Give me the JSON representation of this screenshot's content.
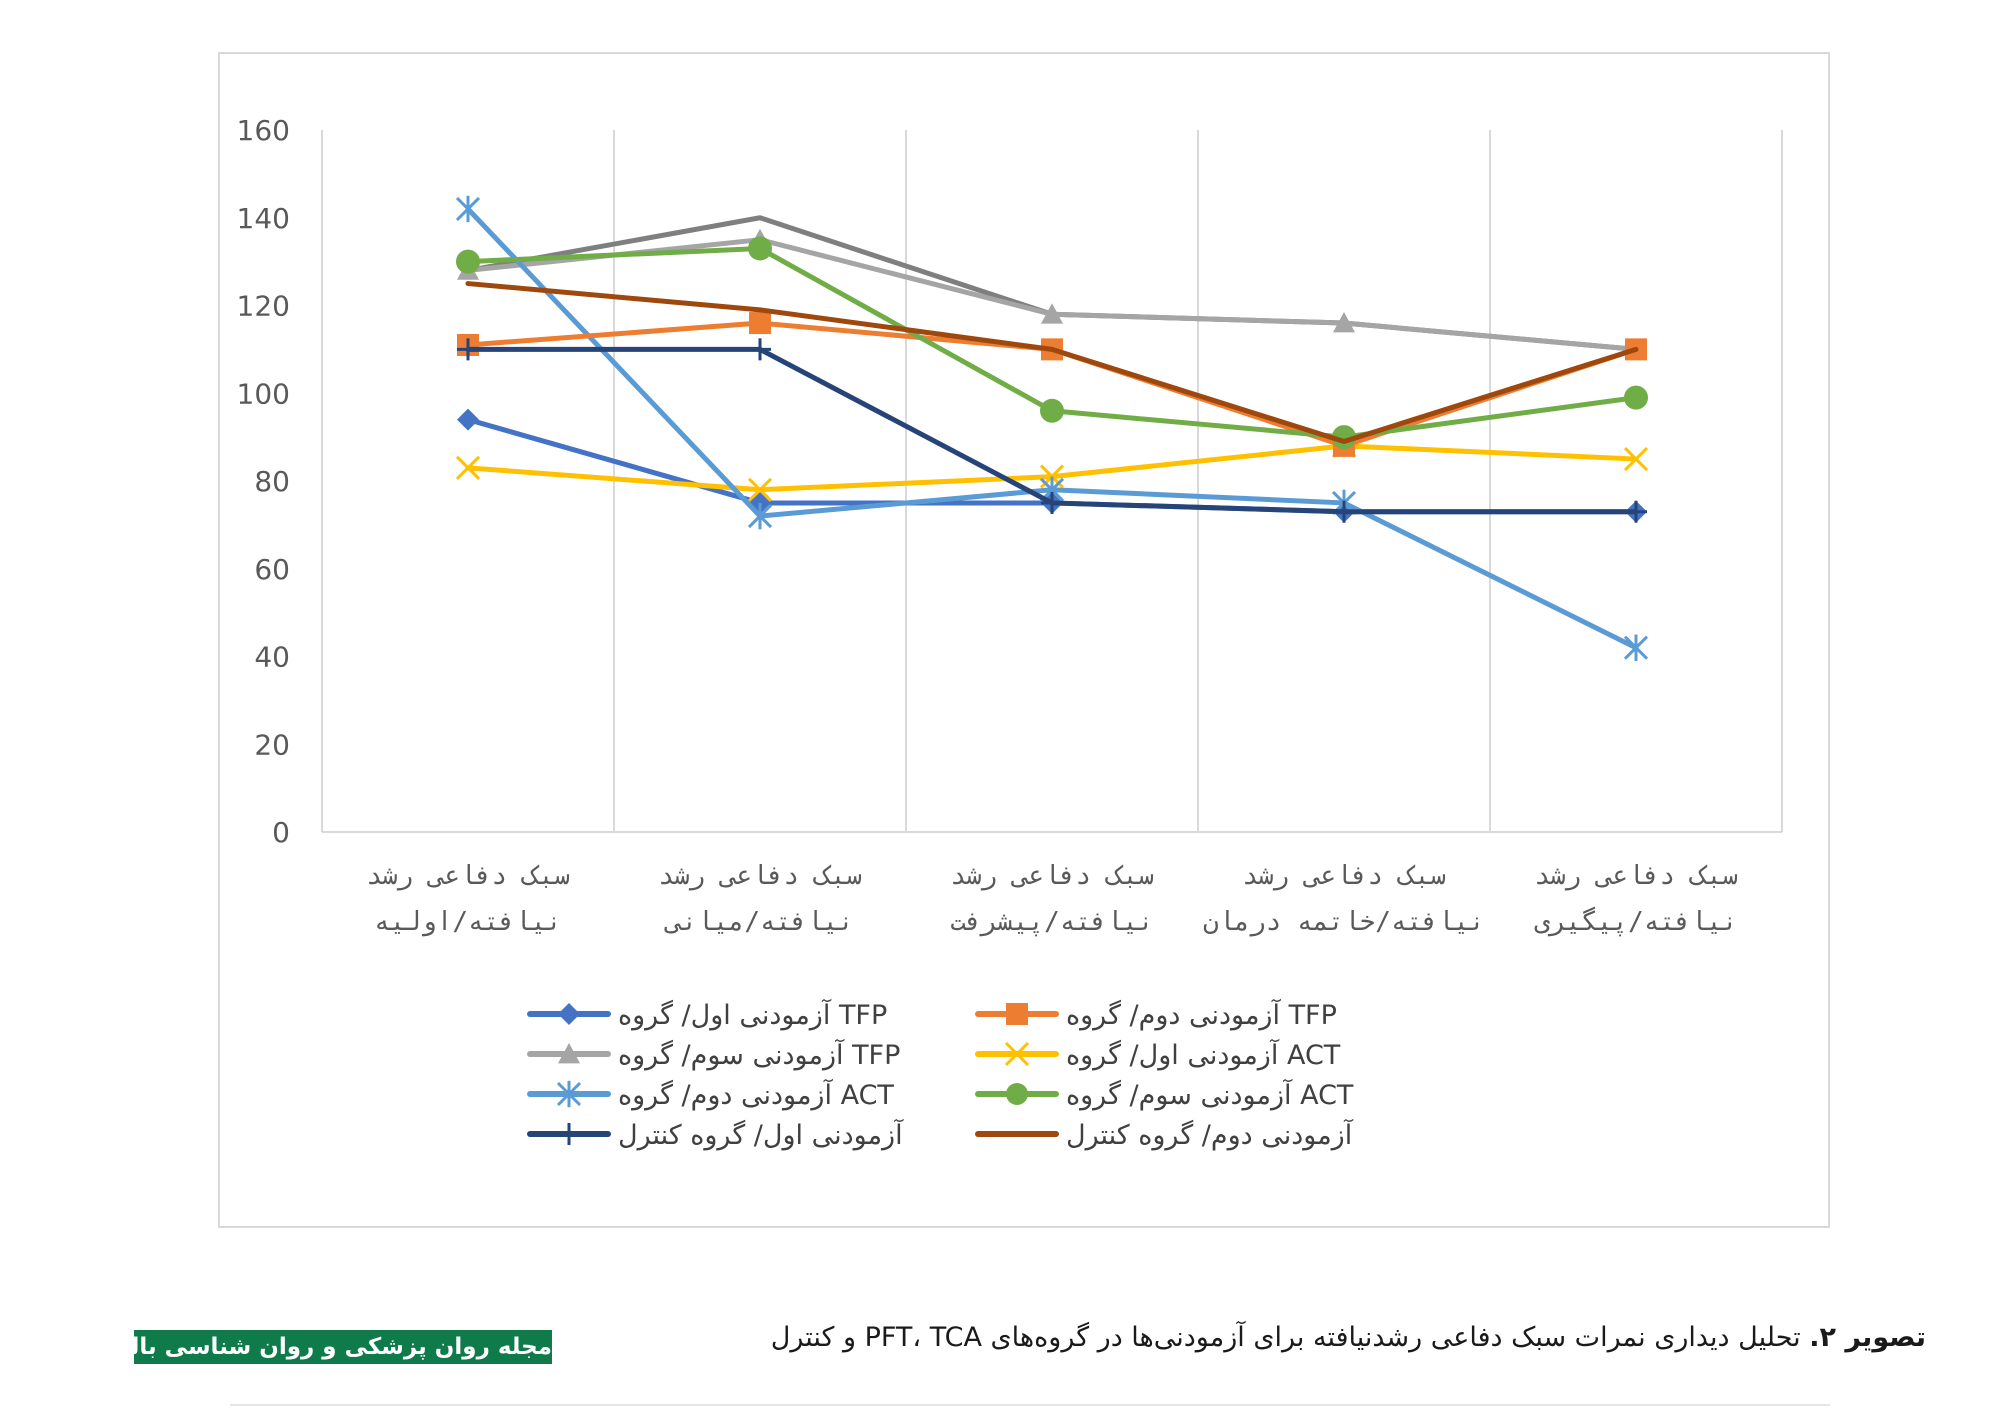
{
  "chart_data": {
    "type": "line",
    "title": "",
    "xlabel": "",
    "ylabel": "",
    "ylim": [
      0,
      160
    ],
    "yticks": [
      0,
      20,
      40,
      60,
      80,
      100,
      120,
      140,
      160
    ],
    "grid": "vertical",
    "legend_position": "bottom",
    "categories": [
      [
        "سبک دفاعی رشد",
        "نیافته/اولیه"
      ],
      [
        "سبک دفاعی رشد",
        "نیافته/میانی"
      ],
      [
        "سبک دفاعی رشد",
        "نیافته/پیشرفت"
      ],
      [
        "سبک دفاعی رشد",
        "نیافته/خاتمه درمان"
      ],
      [
        "سبک دفاعی رشد",
        "نیافته/پیگیری"
      ]
    ],
    "series": [
      {
        "name": "آزمودنی اول/ گروه TFP",
        "color": "#4472c4",
        "marker": "diamond",
        "values": [
          94,
          75,
          75,
          73,
          73
        ]
      },
      {
        "name": "آزمودنی دوم/ گروه TFP",
        "color": "#ed7d31",
        "marker": "square",
        "values": [
          111,
          116,
          110,
          88,
          110
        ]
      },
      {
        "name": "آزمودنی سوم/ گروه TFP",
        "color": "#a5a5a5",
        "marker": "triangle",
        "values": [
          128,
          135,
          118,
          116,
          110
        ]
      },
      {
        "name": "آزمودنی اول/ گروه ACT",
        "color": "#ffc000",
        "marker": "x",
        "values": [
          83,
          78,
          81,
          88,
          85
        ]
      },
      {
        "name": "آزمودنی دوم/ گروه ACT",
        "color": "#5b9bd5",
        "marker": "star",
        "values": [
          142,
          72,
          78,
          75,
          42
        ]
      },
      {
        "name": "آزمودنی سوم/ گروه ACT",
        "color": "#70ad47",
        "marker": "circle",
        "values": [
          130,
          133,
          96,
          90,
          99
        ]
      },
      {
        "name": "آزمودنی اول/ گروه کنترل",
        "color": "#264478",
        "marker": "plus",
        "values": [
          110,
          110,
          75,
          73,
          73
        ]
      },
      {
        "name": "آزمودنی دوم/ گروه کنترل",
        "color": "#9e480e",
        "marker": "none",
        "values": [
          125,
          119,
          110,
          89,
          110
        ]
      },
      {
        "name": "",
        "color": "#7f7f7f",
        "marker": "none",
        "values": [
          128,
          140,
          118,
          116,
          110
        ]
      }
    ]
  },
  "caption": {
    "label": "تصویر ۲.",
    "text": " تحلیل دیداری نمرات سبک دفاعی رشدنیافته برای آزمودنی‌ها در گروه‌های PFT، TCA و کنترل"
  },
  "journal_logo": "مجله روان پزشکی و روان شناسی بالینی ایران"
}
